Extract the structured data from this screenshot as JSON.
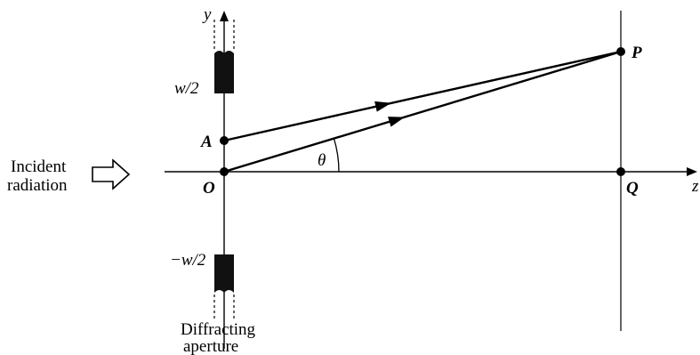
{
  "labels": {
    "y_axis": "y",
    "z_axis": "z",
    "w_half": "w/2",
    "neg_w_half": "−w/2",
    "point_a": "A",
    "point_o": "O",
    "point_p": "P",
    "point_q": "Q",
    "angle": "θ",
    "incident_line1": "Incident",
    "incident_line2": "radiation",
    "aperture_line1": "Diffracting",
    "aperture_line2": "aperture"
  }
}
